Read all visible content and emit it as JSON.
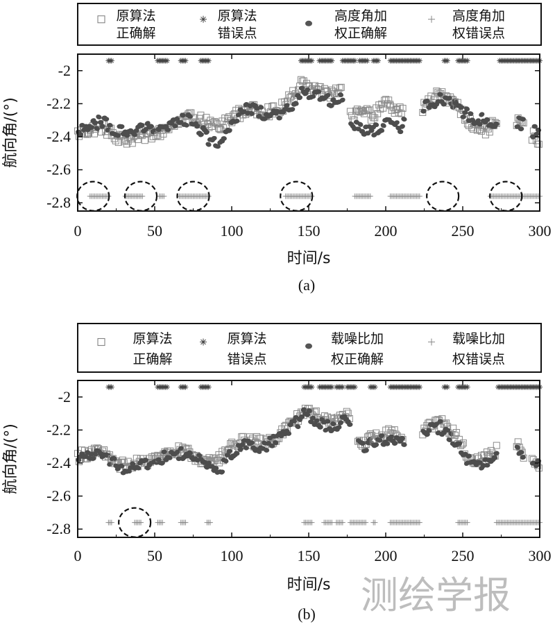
{
  "chart_data": [
    {
      "panel": "a",
      "caption": "(a)",
      "type": "scatter",
      "xlabel": "时间/s",
      "ylabel": "航向角/(°)",
      "xlim": [
        0,
        300
      ],
      "ylim": [
        -2.85,
        -1.9
      ],
      "xticks": [
        "0",
        "50",
        "100",
        "150",
        "200",
        "250",
        "300"
      ],
      "yticks": [
        "-2",
        "-2.2",
        "-2.4",
        "-2.6",
        "-2.8"
      ],
      "legend": [
        {
          "line1": "原算法",
          "line2": "正确解",
          "marker": "square"
        },
        {
          "line1": "原算法",
          "line2": "错误点",
          "marker": "star"
        },
        {
          "line1": "高度角加",
          "line2": "权正确解",
          "marker": "dot"
        },
        {
          "line1": "高度角加",
          "line2": "权错误点",
          "marker": "plus"
        }
      ],
      "segments": [
        [
          0,
          22
        ],
        [
          22,
          52
        ],
        [
          52,
          92
        ],
        [
          92,
          145
        ],
        [
          145,
          172
        ],
        [
          177,
          192
        ],
        [
          192,
          203
        ],
        [
          203,
          212
        ],
        [
          224,
          245
        ],
        [
          245,
          272
        ],
        [
          285,
          290
        ],
        [
          295,
          300
        ]
      ],
      "original_curve": [
        [
          0,
          -2.38
        ],
        [
          15,
          -2.34
        ],
        [
          30,
          -2.42
        ],
        [
          45,
          -2.39
        ],
        [
          55,
          -2.37
        ],
        [
          65,
          -2.32
        ],
        [
          75,
          -2.28
        ],
        [
          85,
          -2.32
        ],
        [
          92,
          -2.35
        ],
        [
          100,
          -2.28
        ],
        [
          110,
          -2.24
        ],
        [
          120,
          -2.24
        ],
        [
          130,
          -2.25
        ],
        [
          140,
          -2.15
        ],
        [
          145,
          -2.08
        ],
        [
          155,
          -2.13
        ],
        [
          165,
          -2.14
        ],
        [
          172,
          -2.1
        ],
        [
          177,
          -2.28
        ],
        [
          185,
          -2.25
        ],
        [
          192,
          -2.27
        ],
        [
          200,
          -2.2
        ],
        [
          210,
          -2.24
        ],
        [
          224,
          -2.23
        ],
        [
          235,
          -2.14
        ],
        [
          245,
          -2.18
        ],
        [
          255,
          -2.32
        ],
        [
          262,
          -2.38
        ],
        [
          272,
          -2.32
        ],
        [
          286,
          -2.3
        ],
        [
          298,
          -2.42
        ]
      ],
      "weighted_curve": [
        [
          0,
          -2.37
        ],
        [
          15,
          -2.31
        ],
        [
          30,
          -2.38
        ],
        [
          45,
          -2.35
        ],
        [
          55,
          -2.36
        ],
        [
          65,
          -2.3
        ],
        [
          75,
          -2.3
        ],
        [
          85,
          -2.42
        ],
        [
          92,
          -2.46
        ],
        [
          100,
          -2.3
        ],
        [
          110,
          -2.22
        ],
        [
          120,
          -2.26
        ],
        [
          130,
          -2.28
        ],
        [
          140,
          -2.21
        ],
        [
          145,
          -2.13
        ],
        [
          155,
          -2.15
        ],
        [
          165,
          -2.19
        ],
        [
          172,
          -2.15
        ],
        [
          177,
          -2.31
        ],
        [
          185,
          -2.35
        ],
        [
          192,
          -2.36
        ],
        [
          200,
          -2.32
        ],
        [
          210,
          -2.34
        ],
        [
          224,
          -2.22
        ],
        [
          235,
          -2.17
        ],
        [
          245,
          -2.21
        ],
        [
          255,
          -2.28
        ],
        [
          262,
          -2.3
        ],
        [
          272,
          -2.32
        ],
        [
          286,
          -2.31
        ],
        [
          298,
          -2.38
        ]
      ],
      "original_errors": [
        [
          20,
          22
        ],
        [
          52,
          58
        ],
        [
          67,
          70
        ],
        [
          80,
          85
        ],
        [
          145,
          152
        ],
        [
          157,
          165
        ],
        [
          172,
          180
        ],
        [
          183,
          188
        ],
        [
          192,
          195
        ],
        [
          203,
          222
        ],
        [
          238,
          240
        ],
        [
          247,
          253
        ],
        [
          274,
          300
        ]
      ],
      "weighted_errors": [
        [
          8,
          20
        ],
        [
          31,
          42
        ],
        [
          53,
          56
        ],
        [
          66,
          85
        ],
        [
          135,
          152
        ],
        [
          180,
          190
        ],
        [
          203,
          222
        ],
        [
          268,
          300
        ]
      ],
      "error_y_top": -1.94,
      "error_y_bottom": -2.76,
      "circles": [
        10,
        41,
        75,
        142,
        237,
        278
      ]
    },
    {
      "panel": "b",
      "caption": "(b)",
      "type": "scatter",
      "xlabel": "时间/s",
      "ylabel": "航向角/(°)",
      "xlim": [
        0,
        300
      ],
      "ylim": [
        -2.85,
        -1.9
      ],
      "xticks": [
        "0",
        "50",
        "100",
        "150",
        "200",
        "250",
        "300"
      ],
      "yticks": [
        "-2",
        "-2.2",
        "-2.4",
        "-2.6",
        "-2.8"
      ],
      "legend": [
        {
          "line1": "原算法",
          "line2": "正确解",
          "marker": "square"
        },
        {
          "line1": "原算法",
          "line2": "错误点",
          "marker": "star"
        },
        {
          "line1": "载噪比加",
          "line2": "权正确解",
          "marker": "dot"
        },
        {
          "line1": "载噪比加",
          "line2": "权错误点",
          "marker": "plus"
        }
      ],
      "segments": [
        [
          0,
          22
        ],
        [
          22,
          52
        ],
        [
          52,
          92
        ],
        [
          92,
          145
        ],
        [
          145,
          177
        ],
        [
          182,
          192
        ],
        [
          192,
          203
        ],
        [
          203,
          212
        ],
        [
          224,
          245
        ],
        [
          245,
          272
        ],
        [
          285,
          290
        ],
        [
          295,
          300
        ]
      ],
      "original_curve": [
        [
          0,
          -2.36
        ],
        [
          10,
          -2.33
        ],
        [
          20,
          -2.36
        ],
        [
          30,
          -2.42
        ],
        [
          45,
          -2.39
        ],
        [
          55,
          -2.35
        ],
        [
          65,
          -2.33
        ],
        [
          75,
          -2.35
        ],
        [
          85,
          -2.4
        ],
        [
          92,
          -2.38
        ],
        [
          100,
          -2.3
        ],
        [
          110,
          -2.26
        ],
        [
          120,
          -2.28
        ],
        [
          130,
          -2.24
        ],
        [
          140,
          -2.15
        ],
        [
          148,
          -2.08
        ],
        [
          155,
          -2.12
        ],
        [
          165,
          -2.15
        ],
        [
          172,
          -2.1
        ],
        [
          177,
          -2.14
        ],
        [
          182,
          -2.27
        ],
        [
          192,
          -2.25
        ],
        [
          200,
          -2.22
        ],
        [
          210,
          -2.24
        ],
        [
          224,
          -2.2
        ],
        [
          235,
          -2.15
        ],
        [
          245,
          -2.23
        ],
        [
          255,
          -2.38
        ],
        [
          262,
          -2.38
        ],
        [
          272,
          -2.32
        ],
        [
          286,
          -2.3
        ],
        [
          298,
          -2.42
        ]
      ],
      "weighted_curve": [
        [
          0,
          -2.37
        ],
        [
          10,
          -2.35
        ],
        [
          20,
          -2.38
        ],
        [
          30,
          -2.44
        ],
        [
          45,
          -2.41
        ],
        [
          55,
          -2.37
        ],
        [
          65,
          -2.34
        ],
        [
          75,
          -2.36
        ],
        [
          85,
          -2.43
        ],
        [
          92,
          -2.46
        ],
        [
          100,
          -2.33
        ],
        [
          110,
          -2.28
        ],
        [
          120,
          -2.3
        ],
        [
          130,
          -2.26
        ],
        [
          140,
          -2.17
        ],
        [
          148,
          -2.1
        ],
        [
          155,
          -2.15
        ],
        [
          165,
          -2.19
        ],
        [
          172,
          -2.15
        ],
        [
          177,
          -2.16
        ],
        [
          182,
          -2.3
        ],
        [
          192,
          -2.28
        ],
        [
          200,
          -2.25
        ],
        [
          210,
          -2.27
        ],
        [
          224,
          -2.22
        ],
        [
          235,
          -2.18
        ],
        [
          245,
          -2.26
        ],
        [
          255,
          -2.4
        ],
        [
          262,
          -2.41
        ],
        [
          272,
          -2.34
        ],
        [
          286,
          -2.31
        ],
        [
          298,
          -2.42
        ]
      ],
      "original_errors": [
        [
          20,
          22
        ],
        [
          52,
          58
        ],
        [
          67,
          70
        ],
        [
          80,
          85
        ],
        [
          147,
          152
        ],
        [
          157,
          165
        ],
        [
          168,
          172
        ],
        [
          175,
          180
        ],
        [
          190,
          193
        ],
        [
          203,
          222
        ],
        [
          238,
          240
        ],
        [
          247,
          253
        ],
        [
          273,
          300
        ]
      ],
      "weighted_errors": [
        [
          20,
          22
        ],
        [
          37,
          41
        ],
        [
          52,
          55
        ],
        [
          67,
          70
        ],
        [
          84,
          86
        ],
        [
          147,
          152
        ],
        [
          160,
          165
        ],
        [
          168,
          172
        ],
        [
          177,
          187
        ],
        [
          192,
          193
        ],
        [
          203,
          222
        ],
        [
          247,
          253
        ],
        [
          272,
          300
        ]
      ],
      "error_y_top": -1.94,
      "error_y_bottom": -2.76,
      "circles": [
        37
      ]
    }
  ],
  "watermark": "测绘学报"
}
